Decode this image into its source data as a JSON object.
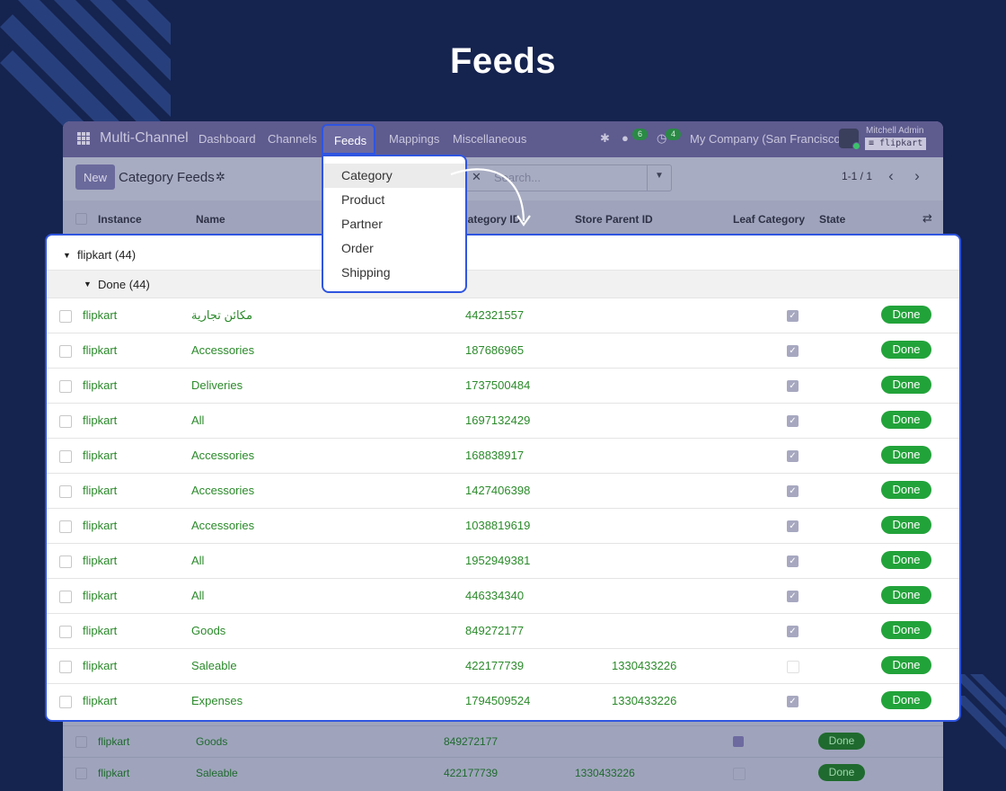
{
  "hero": {
    "title": "Feeds"
  },
  "navbar": {
    "brand": "Multi-Channel",
    "items": [
      "Dashboard",
      "Channels",
      "Feeds",
      "Mappings",
      "Miscellaneous"
    ],
    "messages_count": "6",
    "activities_count": "4",
    "company": "My Company (San Francisco)",
    "user_name": "Mitchell Admin",
    "database": "flipkart"
  },
  "control": {
    "new_label": "New",
    "title": "Category Feeds",
    "search_placeholder": "Search...",
    "pager": "1-1 / 1"
  },
  "columns": [
    "Instance",
    "Name",
    "Store Category ID",
    "Store Parent ID",
    "Leaf Category",
    "State"
  ],
  "dropdown": {
    "items": [
      "Category",
      "Product",
      "Partner",
      "Order",
      "Shipping"
    ],
    "active": "Category"
  },
  "group": {
    "label": "flipkart (44)",
    "sublabel": "Done (44)"
  },
  "rows": [
    {
      "instance": "flipkart",
      "name": "مكائن تجارية",
      "store_id": "442321557",
      "parent_id": "",
      "leaf": true,
      "state": "Done"
    },
    {
      "instance": "flipkart",
      "name": "Accessories",
      "store_id": "187686965",
      "parent_id": "",
      "leaf": true,
      "state": "Done"
    },
    {
      "instance": "flipkart",
      "name": "Deliveries",
      "store_id": "1737500484",
      "parent_id": "",
      "leaf": true,
      "state": "Done"
    },
    {
      "instance": "flipkart",
      "name": "All",
      "store_id": "1697132429",
      "parent_id": "",
      "leaf": true,
      "state": "Done"
    },
    {
      "instance": "flipkart",
      "name": "Accessories",
      "store_id": "168838917",
      "parent_id": "",
      "leaf": true,
      "state": "Done"
    },
    {
      "instance": "flipkart",
      "name": "Accessories",
      "store_id": "1427406398",
      "parent_id": "",
      "leaf": true,
      "state": "Done"
    },
    {
      "instance": "flipkart",
      "name": "Accessories",
      "store_id": "1038819619",
      "parent_id": "",
      "leaf": true,
      "state": "Done"
    },
    {
      "instance": "flipkart",
      "name": "All",
      "store_id": "1952949381",
      "parent_id": "",
      "leaf": true,
      "state": "Done"
    },
    {
      "instance": "flipkart",
      "name": "All",
      "store_id": "446334340",
      "parent_id": "",
      "leaf": true,
      "state": "Done"
    },
    {
      "instance": "flipkart",
      "name": "Goods",
      "store_id": "849272177",
      "parent_id": "",
      "leaf": true,
      "state": "Done"
    },
    {
      "instance": "flipkart",
      "name": "Saleable",
      "store_id": "422177739",
      "parent_id": "1330433226",
      "leaf": false,
      "state": "Done"
    },
    {
      "instance": "flipkart",
      "name": "Expenses",
      "store_id": "1794509524",
      "parent_id": "1330433226",
      "leaf": true,
      "state": "Done"
    }
  ],
  "background_rows": [
    {
      "instance": "flipkart",
      "name": "Goods",
      "store_id": "849272177",
      "parent_id": "",
      "leaf": true,
      "state": "Done"
    },
    {
      "instance": "flipkart",
      "name": "Saleable",
      "store_id": "422177739",
      "parent_id": "1330433226",
      "leaf": false,
      "state": "Done"
    }
  ],
  "colors": {
    "background": "#15234f",
    "highlight": "#2f55e0",
    "done": "#22a33a",
    "link_text": "#2b8a2b",
    "navbar": "#5e5b8f"
  }
}
